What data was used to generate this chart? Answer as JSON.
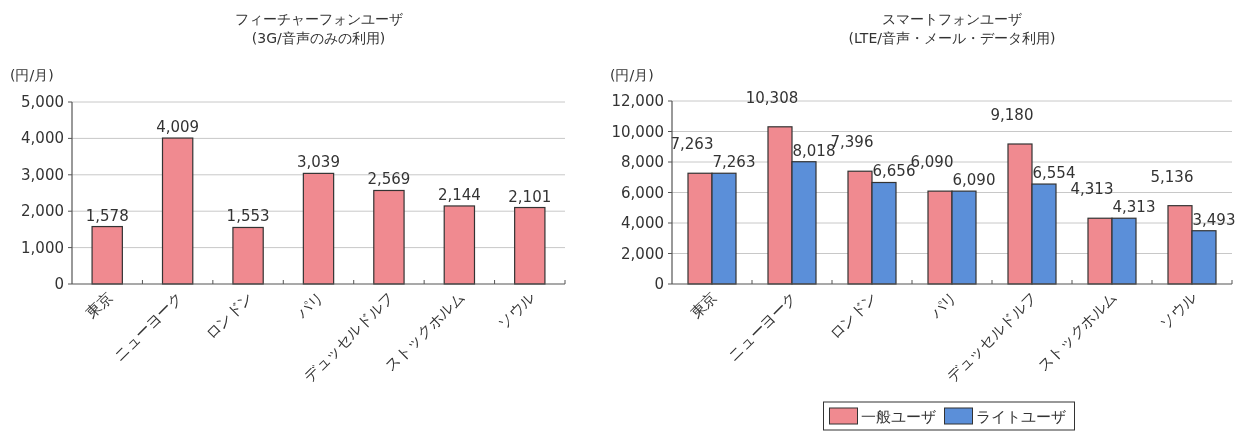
{
  "chart_data": [
    {
      "type": "bar",
      "title": "フィーチャーフォンユーザ",
      "subtitle": "(3G/音声のみの利用)",
      "ylabel": "(円/月)",
      "categories": [
        "東京",
        "ニューヨーク",
        "ロンドン",
        "パリ",
        "デュッセルドルフ",
        "ストックホルム",
        "ソウル"
      ],
      "series": [
        {
          "color": "#f08a90",
          "values": [
            1578,
            4009,
            1553,
            3039,
            2569,
            2144,
            2101
          ],
          "value_labels": [
            "1,578",
            "4,009",
            "1,553",
            "3,039",
            "2,569",
            "2,144",
            "2,101"
          ]
        }
      ],
      "ylim": [
        0,
        5000
      ],
      "yticks": [
        {
          "value": 0,
          "label": "0"
        },
        {
          "value": 1000,
          "label": "1,000"
        },
        {
          "value": 2000,
          "label": "2,000"
        },
        {
          "value": 3000,
          "label": "3,000"
        },
        {
          "value": 4000,
          "label": "4,000"
        },
        {
          "value": 5000,
          "label": "5,000"
        }
      ],
      "grid": "y",
      "legend": false
    },
    {
      "type": "bar",
      "title": "スマートフォンユーザ",
      "subtitle": "(LTE/音声・メール・データ利用)",
      "ylabel": "(円/月)",
      "categories": [
        "東京",
        "ニューヨーク",
        "ロンドン",
        "パリ",
        "デュッセルドルフ",
        "ストックホルム",
        "ソウル"
      ],
      "series": [
        {
          "name": "一般ユーザ",
          "color": "#f08a90",
          "values": [
            7263,
            10308,
            7396,
            6090,
            9180,
            4313,
            5136
          ],
          "value_labels": [
            "7,263",
            "10,308",
            "7,396",
            "6,090",
            "9,180",
            "4,313",
            "5,136"
          ]
        },
        {
          "name": "ライトユーザ",
          "color": "#5b8fd9",
          "values": [
            7263,
            8018,
            6656,
            6090,
            6554,
            4313,
            3493
          ],
          "value_labels": [
            "7,263",
            "8,018",
            "6,656",
            "6,090",
            "6,554",
            "4,313",
            "3,493"
          ]
        }
      ],
      "ylim": [
        0,
        12000
      ],
      "yticks": [
        {
          "value": 0,
          "label": "0"
        },
        {
          "value": 2000,
          "label": "2,000"
        },
        {
          "value": 4000,
          "label": "4,000"
        },
        {
          "value": 6000,
          "label": "6,000"
        },
        {
          "value": 8000,
          "label": "8,000"
        },
        {
          "value": 10000,
          "label": "10,000"
        },
        {
          "value": 12000,
          "label": "12,000"
        }
      ],
      "grid": "y",
      "legend": "bottom"
    }
  ]
}
